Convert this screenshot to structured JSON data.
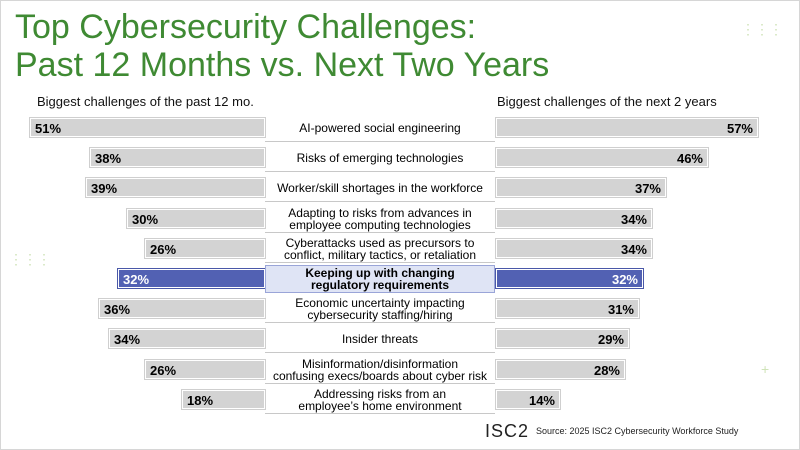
{
  "title_line1": "Top Cybersecurity Challenges:",
  "title_line2": "Past 12 Months vs. Next Two Years",
  "footer": {
    "logo": "ISC2",
    "source": "Source: 2025 ISC2 Cybersecurity Workforce Study"
  },
  "colors": {
    "title": "#3f8a33",
    "bar": "#d3d3d3",
    "highlight": "#5261b3",
    "highlight_row": "#dfe4f5"
  },
  "chart_data": {
    "type": "bar",
    "orientation": "horizontal-butterfly",
    "left_header": "Biggest challenges of the past 12 mo.",
    "right_header": "Biggest challenges of the next 2 years",
    "categories": [
      "AI-powered social engineering",
      "Risks of emerging technologies",
      "Worker/skill shortages in the workforce",
      "Adapting to risks from advances in employee computing technologies",
      "Cyberattacks used as precursors to conflict, military tactics, or retaliation",
      "Keeping up with changing regulatory requirements",
      "Economic uncertainty impacting cybersecurity staffing/hiring",
      "Insider threats",
      "Misinformation/disinformation confusing execs/boards about cyber risk",
      "Addressing risks from an employee's home environment"
    ],
    "category_lines": [
      [
        "AI-powered social engineering"
      ],
      [
        "Risks of emerging technologies"
      ],
      [
        "Worker/skill shortages in the workforce"
      ],
      [
        "Adapting to risks from advances in",
        "employee computing technologies"
      ],
      [
        "Cyberattacks used as precursors to",
        "conflict, military tactics, or retaliation"
      ],
      [
        "Keeping up with changing",
        "regulatory requirements"
      ],
      [
        "Economic uncertainty impacting",
        "cybersecurity staffing/hiring"
      ],
      [
        "Insider threats"
      ],
      [
        "Misinformation/disinformation",
        "confusing execs/boards about cyber risk"
      ],
      [
        "Addressing risks from an",
        "employee’s home environment"
      ]
    ],
    "series": [
      {
        "values": [
          51,
          38,
          39,
          30,
          26,
          32,
          36,
          34,
          26,
          18
        ]
      },
      {
        "values": [
          57,
          46,
          37,
          34,
          34,
          32,
          31,
          29,
          28,
          14
        ]
      }
    ],
    "value_labels_left": [
      "51%",
      "38%",
      "39%",
      "30%",
      "26%",
      "32%",
      "36%",
      "34%",
      "26%",
      "18%"
    ],
    "value_labels_right": [
      "57%",
      "46%",
      "37%",
      "34%",
      "34%",
      "32%",
      "31%",
      "29%",
      "28%",
      "14%"
    ],
    "highlighted_category_index": 5,
    "unit": "%",
    "xlim": [
      0,
      60
    ]
  }
}
